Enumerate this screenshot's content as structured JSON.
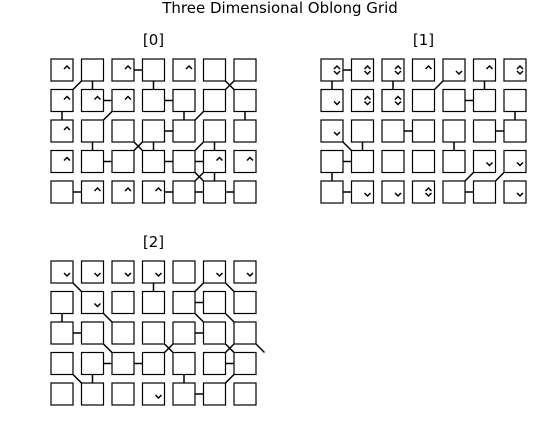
{
  "title": "Three Dimensional Oblong Grid",
  "panels": [
    {
      "label": "[0]",
      "cells": [
        [
          "U",
          "",
          "U",
          "",
          "U",
          "",
          ""
        ],
        [
          "U",
          "U",
          "U",
          "",
          "",
          "",
          ""
        ],
        [
          "U",
          "",
          "",
          "",
          "",
          "",
          ""
        ],
        [
          "U",
          "",
          "",
          "",
          "",
          "U",
          "U"
        ],
        [
          "",
          "U",
          "U",
          "U",
          "",
          "",
          ""
        ]
      ]
    },
    {
      "label": "[1]",
      "cells": [
        [
          "UD",
          "UD",
          "UD",
          "U",
          "D",
          "U",
          "UD"
        ],
        [
          "D",
          "UD",
          "UD",
          "",
          "",
          "",
          ""
        ],
        [
          "D",
          "",
          "",
          "",
          "",
          "",
          ""
        ],
        [
          "",
          "",
          "",
          "",
          "",
          "D",
          "D"
        ],
        [
          "",
          "D",
          "D",
          "UD",
          "",
          "",
          "D"
        ]
      ]
    },
    {
      "label": "[2]",
      "cells": [
        [
          "D",
          "D",
          "D",
          "D",
          "",
          "D",
          "D"
        ],
        [
          "",
          "D",
          "",
          "",
          "",
          "",
          ""
        ],
        [
          "",
          "",
          "",
          "",
          "",
          "",
          ""
        ],
        [
          "",
          "",
          "",
          "",
          "",
          "",
          ""
        ],
        [
          "",
          "",
          "",
          "D",
          "",
          "",
          ""
        ]
      ]
    }
  ],
  "links": {
    "0": {
      "h": [
        [
          0,
          2
        ],
        [
          1,
          1
        ],
        [
          1,
          3
        ],
        [
          2,
          3
        ],
        [
          3,
          1
        ],
        [
          3,
          3
        ],
        [
          3,
          4
        ],
        [
          4,
          0
        ],
        [
          4,
          3
        ],
        [
          4,
          4
        ],
        [
          4,
          5
        ]
      ],
      "v": [
        [
          0,
          1
        ],
        [
          0,
          3
        ],
        [
          1,
          0
        ],
        [
          1,
          4
        ],
        [
          1,
          6
        ],
        [
          2,
          1
        ],
        [
          2,
          3
        ],
        [
          2,
          5
        ],
        [
          3,
          5
        ]
      ],
      "d": [
        [
          0,
          0,
          "/"
        ],
        [
          1,
          1,
          "/"
        ],
        [
          2,
          2,
          "X"
        ],
        [
          0,
          5,
          "X"
        ],
        [
          1,
          4,
          "/"
        ],
        [
          2,
          4,
          "/"
        ],
        [
          3,
          4,
          "X"
        ]
      ]
    },
    "1": {
      "h": [
        [
          0,
          0
        ],
        [
          1,
          4
        ],
        [
          2,
          2
        ],
        [
          2,
          5
        ],
        [
          3,
          0
        ],
        [
          4,
          0
        ],
        [
          4,
          4
        ]
      ],
      "v": [
        [
          0,
          0
        ],
        [
          0,
          2
        ],
        [
          0,
          5
        ],
        [
          1,
          6
        ],
        [
          2,
          1
        ],
        [
          2,
          4
        ],
        [
          3,
          0
        ]
      ],
      "d": [
        [
          0,
          3,
          "/"
        ],
        [
          2,
          0,
          "\\"
        ],
        [
          3,
          4,
          "/"
        ],
        [
          3,
          5,
          "/"
        ]
      ]
    },
    "2": {
      "h": [
        [
          1,
          4
        ],
        [
          2,
          0
        ],
        [
          2,
          4
        ],
        [
          3,
          1
        ],
        [
          3,
          2
        ],
        [
          3,
          5
        ],
        [
          4,
          4
        ]
      ],
      "v": [
        [
          0,
          3
        ],
        [
          1,
          0
        ],
        [
          3,
          1
        ],
        [
          3,
          4
        ]
      ],
      "d": [
        [
          0,
          0,
          "\\"
        ],
        [
          1,
          1,
          "\\"
        ],
        [
          1,
          4,
          "\\"
        ],
        [
          2,
          1,
          "\\"
        ],
        [
          3,
          0,
          "\\"
        ],
        [
          0,
          4,
          "/"
        ],
        [
          0,
          5,
          "\\"
        ],
        [
          2,
          3,
          "X"
        ],
        [
          2,
          5,
          "X"
        ],
        [
          3,
          5,
          "/"
        ],
        [
          2,
          6,
          "\\"
        ],
        [
          1,
          5,
          "\\"
        ]
      ]
    }
  },
  "colors": {
    "stroke": "#000000",
    "fill": "#ffffff",
    "text": "#000000"
  }
}
